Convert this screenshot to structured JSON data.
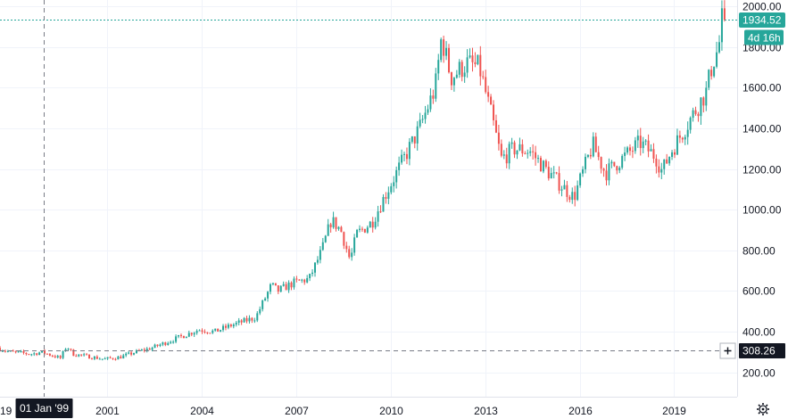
{
  "chart_data": {
    "type": "candlestick",
    "y_ticks": [
      "200.00",
      "400.00",
      "600.00",
      "800.00",
      "1000.00",
      "1200.00",
      "1400.00",
      "1600.00",
      "1800.00",
      "2000.00"
    ],
    "y_tick_values": [
      200,
      400,
      600,
      800,
      1000,
      1200,
      1400,
      1600,
      1800,
      2000
    ],
    "x_ticks": [
      "2001",
      "2004",
      "2007",
      "2010",
      "2013",
      "2016",
      "2019"
    ],
    "x_tick_values": [
      2001,
      2004,
      2007,
      2010,
      2013,
      2016,
      2019
    ],
    "x_left_partial_label": "19",
    "ylim": [
      80,
      2010
    ],
    "xlim": [
      1997.6,
      2021.0
    ],
    "last_price_label": "1934.52",
    "last_price": 1934.52,
    "countdown_label": "4d 16h",
    "crosshair": {
      "price_label": "308.26",
      "price": 308.26,
      "date_label": "01 Jan '99",
      "date": 1999.0
    },
    "colors": {
      "up": "#26a69a",
      "down": "#ef5350",
      "last_price": "#26a69a",
      "crosshair_label": "#131722",
      "grid": "#f0f3fa"
    },
    "key_prices": [
      [
        1997.6,
        320
      ],
      [
        1998.0,
        300
      ],
      [
        1998.7,
        290
      ],
      [
        1999.0,
        300
      ],
      [
        1999.6,
        270
      ],
      [
        1999.8,
        330
      ],
      [
        2000.0,
        290
      ],
      [
        2001.0,
        265
      ],
      [
        2001.5,
        275
      ],
      [
        2002.0,
        300
      ],
      [
        2002.5,
        320
      ],
      [
        2003.0,
        350
      ],
      [
        2004.0,
        410
      ],
      [
        2004.5,
        400
      ],
      [
        2005.0,
        430
      ],
      [
        2005.8,
        470
      ],
      [
        2006.3,
        630
      ],
      [
        2006.5,
        600
      ],
      [
        2007.0,
        640
      ],
      [
        2007.5,
        660
      ],
      [
        2007.9,
        800
      ],
      [
        2008.2,
        950
      ],
      [
        2008.5,
        900
      ],
      [
        2008.8,
        750
      ],
      [
        2009.0,
        880
      ],
      [
        2009.5,
        940
      ],
      [
        2010.0,
        1100
      ],
      [
        2010.5,
        1250
      ],
      [
        2011.0,
        1400
      ],
      [
        2011.5,
        1600
      ],
      [
        2011.7,
        1850
      ],
      [
        2012.0,
        1650
      ],
      [
        2012.5,
        1720
      ],
      [
        2012.9,
        1700
      ],
      [
        2013.3,
        1450
      ],
      [
        2013.6,
        1250
      ],
      [
        2014.0,
        1300
      ],
      [
        2014.5,
        1290
      ],
      [
        2015.0,
        1200
      ],
      [
        2015.5,
        1120
      ],
      [
        2015.9,
        1060
      ],
      [
        2016.5,
        1320
      ],
      [
        2016.9,
        1180
      ],
      [
        2017.5,
        1260
      ],
      [
        2018.0,
        1330
      ],
      [
        2018.5,
        1260
      ],
      [
        2018.7,
        1190
      ],
      [
        2019.0,
        1290
      ],
      [
        2019.5,
        1420
      ],
      [
        2019.8,
        1500
      ],
      [
        2020.1,
        1580
      ],
      [
        2020.3,
        1720
      ],
      [
        2020.5,
        1800
      ],
      [
        2020.6,
        1934.52
      ]
    ]
  },
  "settings_icon": "gear-icon",
  "crosshair_icon": "plus-icon"
}
